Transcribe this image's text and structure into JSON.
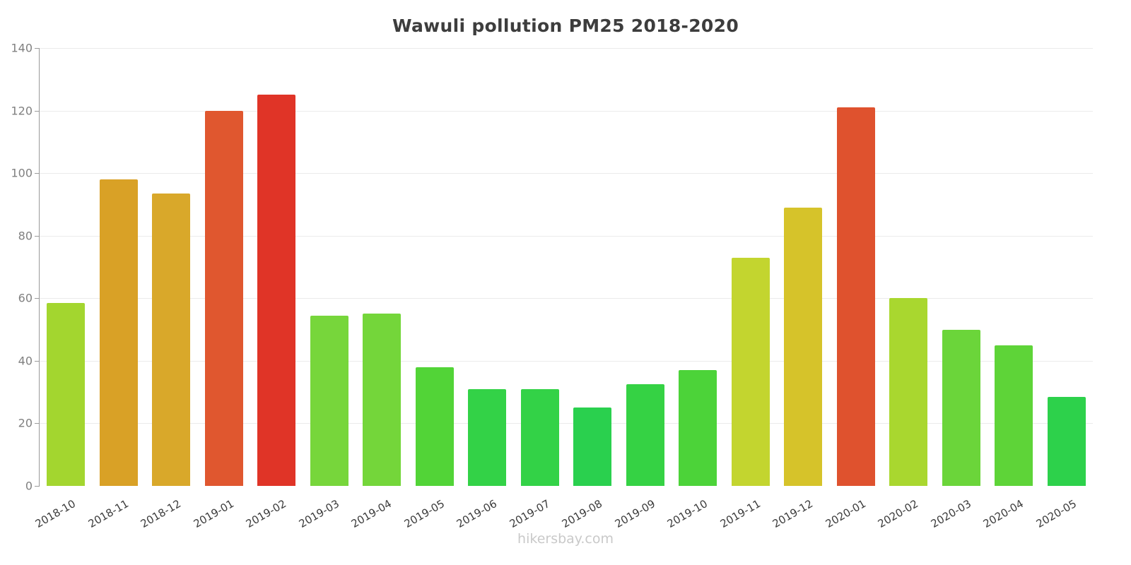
{
  "chart_data": {
    "type": "bar",
    "title": "Wawuli pollution PM25 2018-2020",
    "xlabel": "",
    "ylabel": "",
    "ylim": [
      0,
      140
    ],
    "yticks": [
      0,
      20,
      40,
      60,
      80,
      100,
      120,
      140
    ],
    "grid": true,
    "legend": false,
    "categories": [
      "2018-10",
      "2018-11",
      "2018-12",
      "2019-01",
      "2019-02",
      "2019-03",
      "2019-04",
      "2019-05",
      "2019-06",
      "2019-07",
      "2019-08",
      "2019-09",
      "2019-10",
      "2019-11",
      "2019-12",
      "2020-01",
      "2020-02",
      "2020-03",
      "2020-04",
      "2020-05"
    ],
    "values": [
      58.5,
      98,
      93.5,
      120,
      125,
      54.5,
      55,
      38,
      31,
      31,
      25,
      32.5,
      37,
      73,
      89,
      121,
      60,
      50,
      45,
      28.5
    ],
    "bar_colors": [
      "#a3d62f",
      "#d9a126",
      "#d9a82a",
      "#e0572f",
      "#e03427",
      "#77d63b",
      "#74d63a",
      "#52d437",
      "#33d247",
      "#33d247",
      "#2ad04e",
      "#35d244",
      "#4cd339",
      "#c3d52f",
      "#d6c32a",
      "#df522e",
      "#a9d72f",
      "#6bd53a",
      "#5ed438",
      "#2dd14b"
    ]
  },
  "footer": {
    "watermark": "hikersbay.com"
  },
  "style": {
    "colors": {
      "title-color": "#3d3d3d",
      "axis-color": "#9a9a9a",
      "grid-color": "#ebebeb",
      "ytick-label-color": "#808080",
      "xtick-label-color": "#3c3c3c",
      "watermark-color": "#c9c9c9"
    }
  }
}
